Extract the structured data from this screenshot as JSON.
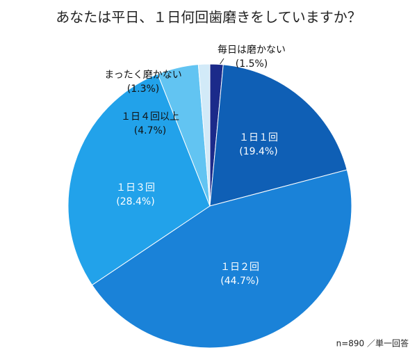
{
  "chart_data": {
    "type": "pie",
    "title": "あなたは平日、１日何回歯磨きをしていますか？",
    "note": "n=890 ／単一回答",
    "categories": [
      "毎日は磨かない",
      "１日１回",
      "１日２回",
      "１日３回",
      "１日４回以上",
      "まったく磨かない"
    ],
    "values": [
      1.5,
      19.4,
      44.7,
      28.4,
      4.7,
      1.3
    ],
    "value_labels": [
      "(1.5%)",
      "(19.4%)",
      "(44.7%)",
      "(28.4%)",
      "(4.7%)",
      "(1.3%)"
    ],
    "colors": [
      "#1b2a8a",
      "#0f5fb5",
      "#1a82d8",
      "#22a2ea",
      "#62c4f2",
      "#d2eaf8"
    ]
  }
}
